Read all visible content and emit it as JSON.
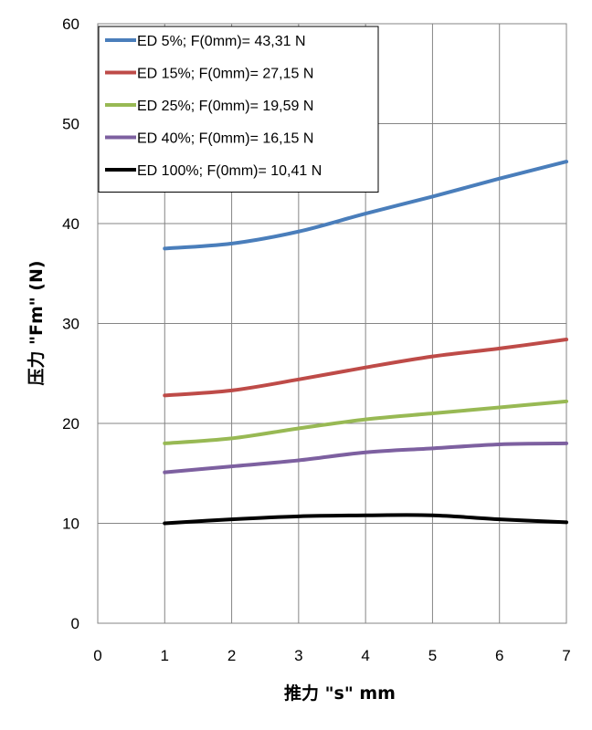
{
  "chart_data": {
    "type": "line",
    "xlabel": "推力 \"s\" mm",
    "ylabel": "压力 \"Fm\" (N)",
    "xlim": [
      0,
      7
    ],
    "ylim": [
      0,
      60
    ],
    "x_ticks": [
      0,
      1,
      2,
      3,
      4,
      5,
      6,
      7
    ],
    "y_ticks": [
      0,
      10,
      20,
      30,
      40,
      50,
      60
    ],
    "grid": true,
    "legend_position": "top-left",
    "series": [
      {
        "name": "ED 5%; F(0mm)= 43,31 N",
        "color": "#4a7ebb",
        "x": [
          1,
          2,
          3,
          4,
          5,
          6,
          7
        ],
        "y": [
          37.5,
          38.0,
          39.2,
          41.0,
          42.7,
          44.5,
          46.2
        ]
      },
      {
        "name": "ED 15%; F(0mm)= 27,15 N",
        "color": "#be4b48",
        "x": [
          1,
          2,
          3,
          4,
          5,
          6,
          7
        ],
        "y": [
          22.8,
          23.3,
          24.4,
          25.6,
          26.7,
          27.5,
          28.4
        ]
      },
      {
        "name": "ED 25%; F(0mm)= 19,59 N",
        "color": "#98b954",
        "x": [
          1,
          2,
          3,
          4,
          5,
          6,
          7
        ],
        "y": [
          18.0,
          18.5,
          19.5,
          20.4,
          21.0,
          21.6,
          22.2
        ]
      },
      {
        "name": "ED 40%; F(0mm)= 16,15 N",
        "color": "#7d60a0",
        "x": [
          1,
          2,
          3,
          4,
          5,
          6,
          7
        ],
        "y": [
          15.1,
          15.7,
          16.3,
          17.1,
          17.5,
          17.9,
          18.0
        ]
      },
      {
        "name": "ED 100%; F(0mm)= 10,41 N",
        "color": "#000000",
        "x": [
          1,
          2,
          3,
          4,
          5,
          6,
          7
        ],
        "y": [
          10.0,
          10.4,
          10.7,
          10.8,
          10.8,
          10.4,
          10.1
        ]
      }
    ]
  }
}
